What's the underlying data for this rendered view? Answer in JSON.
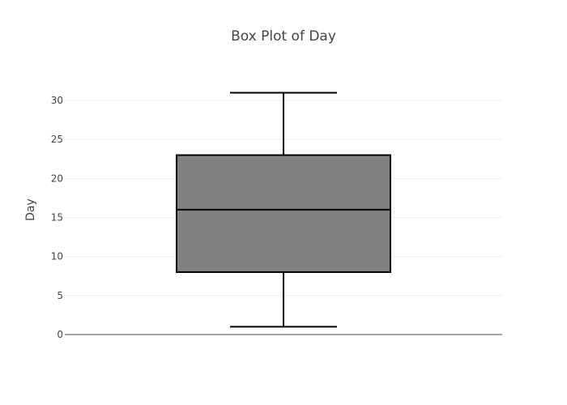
{
  "chart_data": {
    "type": "box",
    "title": "Box Plot of Day",
    "xlabel": "",
    "ylabel": "Day",
    "ylim": [
      0,
      32.5
    ],
    "yticks": [
      0,
      5,
      10,
      15,
      20,
      25,
      30
    ],
    "grid": true,
    "series": [
      {
        "min": 1,
        "q1": 8,
        "median": 16,
        "q3": 23,
        "max": 31
      }
    ],
    "colors": {
      "box_fill": "#808080",
      "box_stroke": "#000000",
      "grid": "#eeeeee",
      "zero_line": "#444444"
    }
  }
}
